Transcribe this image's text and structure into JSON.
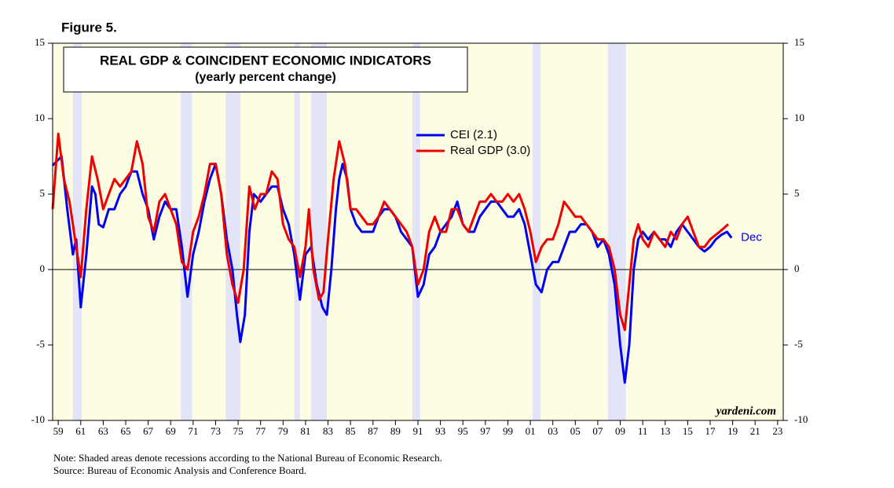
{
  "chart_data": {
    "type": "line",
    "figure_label": "Figure 5.",
    "title": "REAL GDP & COINCIDENT ECONOMIC INDICATORS",
    "subtitle": "(yearly percent change)",
    "annotation": "Dec",
    "watermark": "yardeni.com",
    "notes": [
      "Note: Shaded areas denote recessions according to the National Bureau of Economic Research.",
      "Source: Bureau of Economic Analysis and Conference Board."
    ],
    "xlim": [
      1958.5,
      2023.5
    ],
    "ylim": [
      -10,
      15
    ],
    "yticks": [
      -10,
      -5,
      0,
      5,
      10,
      15
    ],
    "xticks": [
      {
        "value": 1959,
        "label": "59"
      },
      {
        "value": 1961,
        "label": "61"
      },
      {
        "value": 1963,
        "label": "63"
      },
      {
        "value": 1965,
        "label": "65"
      },
      {
        "value": 1967,
        "label": "67"
      },
      {
        "value": 1969,
        "label": "69"
      },
      {
        "value": 1971,
        "label": "71"
      },
      {
        "value": 1973,
        "label": "73"
      },
      {
        "value": 1975,
        "label": "75"
      },
      {
        "value": 1977,
        "label": "77"
      },
      {
        "value": 1979,
        "label": "79"
      },
      {
        "value": 1981,
        "label": "81"
      },
      {
        "value": 1983,
        "label": "83"
      },
      {
        "value": 1985,
        "label": "85"
      },
      {
        "value": 1987,
        "label": "87"
      },
      {
        "value": 1989,
        "label": "89"
      },
      {
        "value": 1991,
        "label": "91"
      },
      {
        "value": 1993,
        "label": "93"
      },
      {
        "value": 1995,
        "label": "95"
      },
      {
        "value": 1997,
        "label": "97"
      },
      {
        "value": 1999,
        "label": "99"
      },
      {
        "value": 2001,
        "label": "01"
      },
      {
        "value": 2003,
        "label": "03"
      },
      {
        "value": 2005,
        "label": "05"
      },
      {
        "value": 2007,
        "label": "07"
      },
      {
        "value": 2009,
        "label": "09"
      },
      {
        "value": 2011,
        "label": "11"
      },
      {
        "value": 2013,
        "label": "13"
      },
      {
        "value": 2015,
        "label": "15"
      },
      {
        "value": 2017,
        "label": "17"
      },
      {
        "value": 2019,
        "label": "19"
      },
      {
        "value": 2021,
        "label": "21"
      },
      {
        "value": 2023,
        "label": "23"
      }
    ],
    "recessions": [
      [
        1960.3,
        1961.1
      ],
      [
        1969.9,
        1970.9
      ],
      [
        1973.9,
        1975.2
      ],
      [
        1980.0,
        1980.5
      ],
      [
        1981.5,
        1982.9
      ],
      [
        1990.5,
        1991.2
      ],
      [
        2001.2,
        2001.9
      ],
      [
        2007.9,
        2009.5
      ]
    ],
    "recession_color": "#e4e4f8",
    "background_color": "#fdfde3",
    "series": [
      {
        "name": "CEI (2.1)",
        "color": "#0000ee",
        "x": [
          1958.5,
          1959.3,
          1959.8,
          1960.3,
          1960.6,
          1961.0,
          1961.5,
          1962.0,
          1962.3,
          1962.6,
          1963.0,
          1963.5,
          1964.0,
          1964.5,
          1965.0,
          1965.5,
          1966.0,
          1966.5,
          1967.0,
          1967.5,
          1968.0,
          1968.5,
          1969.0,
          1969.5,
          1970.0,
          1970.5,
          1971.0,
          1971.5,
          1972.0,
          1972.5,
          1973.0,
          1973.5,
          1974.0,
          1974.5,
          1974.9,
          1975.2,
          1975.6,
          1976.0,
          1976.4,
          1977.0,
          1977.5,
          1978.0,
          1978.5,
          1979.0,
          1979.5,
          1980.0,
          1980.5,
          1981.0,
          1981.5,
          1982.0,
          1982.5,
          1982.9,
          1983.3,
          1983.7,
          1984.0,
          1984.3,
          1984.7,
          1985.0,
          1985.5,
          1986.0,
          1986.5,
          1987.0,
          1987.5,
          1988.0,
          1988.5,
          1989.0,
          1989.5,
          1990.0,
          1990.5,
          1991.0,
          1991.5,
          1992.0,
          1992.5,
          1993.0,
          1993.5,
          1994.0,
          1994.5,
          1995.0,
          1995.5,
          1996.0,
          1996.5,
          1997.0,
          1997.5,
          1998.0,
          1998.5,
          1999.0,
          1999.5,
          2000.0,
          2000.5,
          2001.0,
          2001.5,
          2002.0,
          2002.5,
          2003.0,
          2003.5,
          2004.0,
          2004.5,
          2005.0,
          2005.5,
          2006.0,
          2006.5,
          2007.0,
          2007.5,
          2008.0,
          2008.5,
          2009.0,
          2009.4,
          2009.8,
          2010.2,
          2010.6,
          2011.0,
          2011.5,
          2012.0,
          2012.5,
          2013.0,
          2013.5,
          2014.0,
          2014.5,
          2015.0,
          2015.5,
          2016.0,
          2016.5,
          2017.0,
          2017.5,
          2018.0,
          2018.5,
          2018.9
        ],
        "values": [
          6.9,
          7.5,
          4,
          1,
          2,
          -2.5,
          1,
          5.5,
          5,
          3,
          2.8,
          4,
          4,
          5,
          5.5,
          6.5,
          6.5,
          5,
          4,
          2,
          3.5,
          4.5,
          4,
          4,
          1.5,
          -1.8,
          1,
          2.5,
          4.5,
          6,
          7,
          5,
          2,
          0,
          -3,
          -4.8,
          -3,
          2.5,
          5,
          4.5,
          5,
          5.5,
          5.5,
          4,
          3,
          1,
          -2,
          1,
          1.5,
          -1,
          -2.5,
          -3,
          0,
          4,
          6,
          7,
          6,
          4,
          3,
          2.5,
          2.5,
          2.5,
          3.5,
          4,
          4,
          3.5,
          2.5,
          2,
          1.5,
          -1.8,
          -1,
          1,
          1.5,
          2.5,
          3,
          3.5,
          4.5,
          3,
          2.5,
          2.5,
          3.5,
          4,
          4.5,
          4.5,
          4,
          3.5,
          3.5,
          4,
          3,
          1,
          -1,
          -1.5,
          0,
          0.5,
          0.5,
          1.5,
          2.5,
          2.5,
          3,
          3,
          2.5,
          1.5,
          2,
          1,
          -1,
          -5,
          -7.5,
          -5,
          0,
          2,
          2.5,
          2,
          2.5,
          2,
          2,
          1.5,
          2.5,
          3,
          2.5,
          2,
          1.5,
          1.2,
          1.5,
          2,
          2.3,
          2.5,
          2.1
        ]
      },
      {
        "name": "Real GDP (3.0)",
        "color": "#ee0000",
        "x": [
          1958.5,
          1959.0,
          1959.5,
          1960.0,
          1960.5,
          1961.0,
          1961.5,
          1962.0,
          1962.5,
          1963.0,
          1963.5,
          1964.0,
          1964.5,
          1965.0,
          1965.5,
          1966.0,
          1966.5,
          1967.0,
          1967.5,
          1968.0,
          1968.5,
          1969.0,
          1969.5,
          1970.0,
          1970.5,
          1971.0,
          1971.5,
          1972.0,
          1972.5,
          1973.0,
          1973.5,
          1974.0,
          1974.5,
          1975.0,
          1975.5,
          1976.0,
          1976.5,
          1977.0,
          1977.5,
          1978.0,
          1978.5,
          1979.0,
          1979.5,
          1980.0,
          1980.5,
          1981.0,
          1981.3,
          1981.7,
          1982.2,
          1982.6,
          1983.0,
          1983.5,
          1984.0,
          1984.5,
          1985.0,
          1985.5,
          1986.0,
          1986.5,
          1987.0,
          1987.5,
          1988.0,
          1988.5,
          1989.0,
          1989.5,
          1990.0,
          1990.5,
          1991.0,
          1991.5,
          1992.0,
          1992.5,
          1993.0,
          1993.5,
          1994.0,
          1994.5,
          1995.0,
          1995.5,
          1996.0,
          1996.5,
          1997.0,
          1997.5,
          1998.0,
          1998.5,
          1999.0,
          1999.5,
          2000.0,
          2000.5,
          2001.0,
          2001.5,
          2002.0,
          2002.5,
          2003.0,
          2003.5,
          2004.0,
          2004.5,
          2005.0,
          2005.5,
          2006.0,
          2006.5,
          2007.0,
          2007.5,
          2008.0,
          2008.5,
          2009.0,
          2009.4,
          2009.8,
          2010.2,
          2010.6,
          2011.0,
          2011.5,
          2012.0,
          2012.5,
          2013.0,
          2013.5,
          2014.0,
          2014.5,
          2015.0,
          2015.5,
          2016.0,
          2016.5,
          2017.0,
          2017.5,
          2018.0,
          2018.6
        ],
        "values": [
          4,
          9,
          6,
          4.5,
          2,
          -0.5,
          4,
          7.5,
          6,
          4,
          5,
          6,
          5.5,
          6,
          6.5,
          8.5,
          7,
          3.5,
          2.5,
          4.5,
          5,
          4,
          3,
          0.5,
          0,
          2.5,
          3.5,
          5,
          7,
          7,
          5,
          1,
          -1,
          -2.2,
          0,
          5.5,
          4,
          5,
          5,
          6.5,
          6,
          3,
          2,
          1.5,
          -0.5,
          1.5,
          4,
          0,
          -2,
          -1.5,
          2,
          6,
          8.5,
          7,
          4,
          4,
          3.5,
          3,
          3,
          3.5,
          4.5,
          4,
          3.5,
          3,
          2.5,
          1.5,
          -1,
          0,
          2.5,
          3.5,
          2.5,
          2.5,
          4,
          4,
          3,
          2.5,
          3.5,
          4.5,
          4.5,
          5,
          4.5,
          4.5,
          5,
          4.5,
          5,
          4,
          2.5,
          0.5,
          1.5,
          2,
          2,
          3,
          4.5,
          4,
          3.5,
          3.5,
          3,
          2.5,
          2,
          2,
          1.5,
          0,
          -3,
          -4,
          -1,
          2,
          3,
          2,
          1.5,
          2.5,
          2,
          1.5,
          2.5,
          2,
          3,
          3.5,
          2.5,
          1.5,
          1.5,
          2,
          2.3,
          2.6,
          3.0
        ]
      }
    ]
  }
}
